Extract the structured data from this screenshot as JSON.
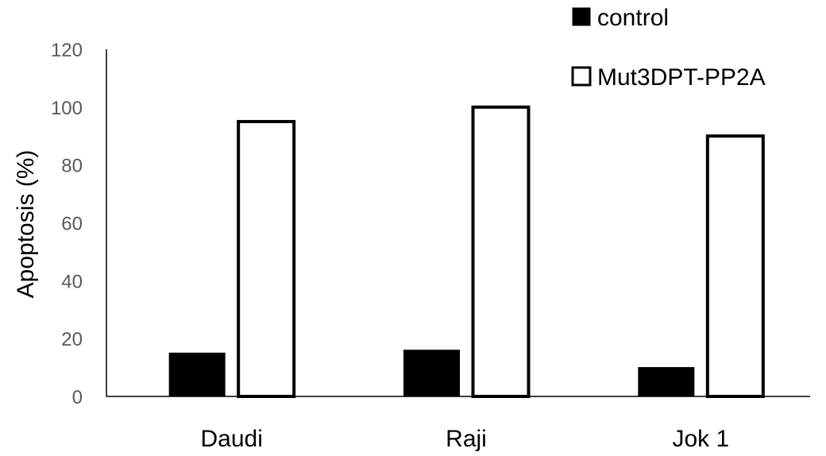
{
  "chart_data": {
    "type": "bar",
    "title": "",
    "xlabel": "",
    "ylabel": "Apoptosis (%)",
    "ylim": [
      0,
      120
    ],
    "yticks": [
      "0",
      "20",
      "40",
      "60",
      "80",
      "100",
      "120"
    ],
    "categories": [
      "Daudi",
      "Raji",
      "Jok 1"
    ],
    "series": [
      {
        "name": "control",
        "values": [
          15,
          16,
          10
        ],
        "fill": "#000000",
        "stroke": "#000000"
      },
      {
        "name": "Mut3DPT-PP2A",
        "values": [
          95,
          100,
          90
        ],
        "fill": "#ffffff",
        "stroke": "#000000"
      }
    ],
    "grid": false,
    "legend_position": "top-right"
  }
}
